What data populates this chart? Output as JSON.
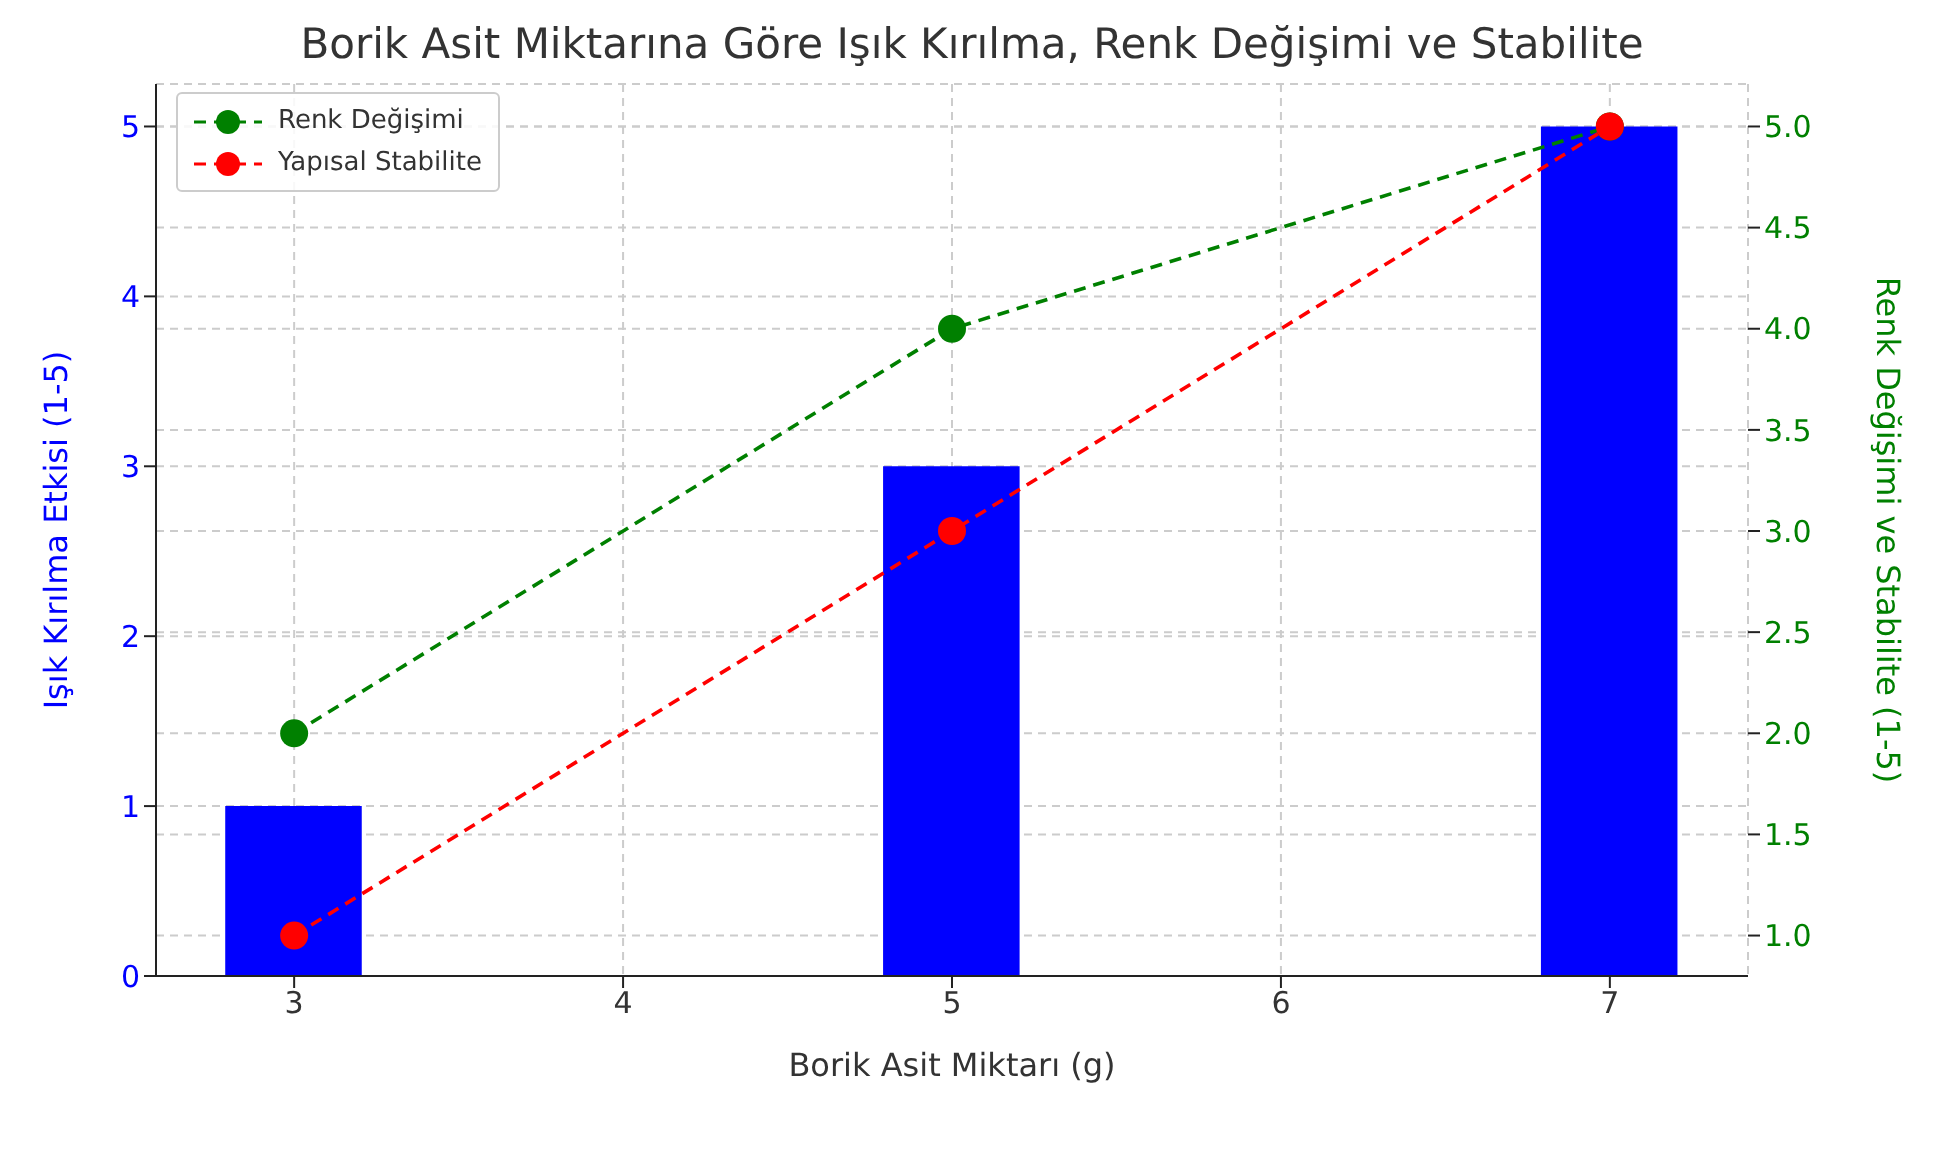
{
  "chart_data": {
    "type": "bar",
    "title": "Borik Asit Miktarına Göre Işık Kırılma, Renk Değişimi ve Stabilite",
    "xlabel": "Borik Asit Miktarı (g)",
    "ylabel": "Işık Kırılma Etkisi (1-5)",
    "y2label": "Renk Değişimi ve Stabilite (1-5)",
    "x": [
      3,
      5,
      7
    ],
    "series": [
      {
        "color": "#0000ff",
        "values": [
          1,
          3,
          5
        ]
      },
      {
        "type": "line",
        "name": "Renk Değişimi",
        "color": "#008000",
        "axis": "y2",
        "values": [
          2,
          4,
          5
        ]
      },
      {
        "type": "line",
        "name": "Yapısal Stabilite",
        "color": "#ff0000",
        "axis": "y2",
        "values": [
          1,
          3,
          5
        ]
      }
    ],
    "xlim": [
      2.58,
      7.42
    ],
    "xticks": [
      3,
      4,
      5,
      6,
      7
    ],
    "ylim": [
      0,
      5.25
    ],
    "yticks": [
      0,
      1,
      2,
      3,
      4,
      5
    ],
    "y2lim": [
      0.8,
      5.21
    ],
    "y2ticks": [
      {
        "value": 1,
        "label": "1.0"
      },
      {
        "value": 1.5,
        "label": "1.5"
      },
      {
        "value": 2,
        "label": "2.0"
      },
      {
        "value": 2.5,
        "label": "2.5"
      },
      {
        "value": 3,
        "label": "3.0"
      },
      {
        "value": 3.5,
        "label": "3.5"
      },
      {
        "value": 4,
        "label": "4.0"
      },
      {
        "value": 4.5,
        "label": "4.5"
      },
      {
        "value": 5,
        "label": "5.0"
      }
    ],
    "grid": true,
    "legend": "top left",
    "marker": "circle",
    "line_style": "dashed"
  }
}
